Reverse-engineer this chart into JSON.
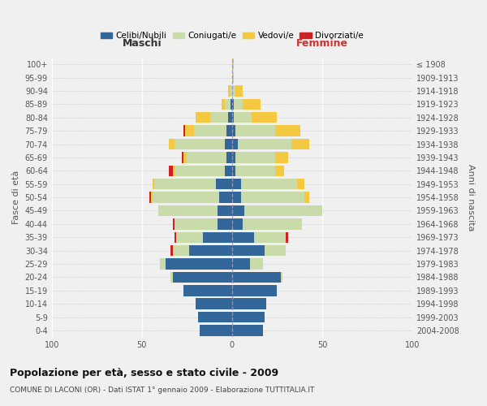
{
  "age_groups": [
    "0-4",
    "5-9",
    "10-14",
    "15-19",
    "20-24",
    "25-29",
    "30-34",
    "35-39",
    "40-44",
    "45-49",
    "50-54",
    "55-59",
    "60-64",
    "65-69",
    "70-74",
    "75-79",
    "80-84",
    "85-89",
    "90-94",
    "95-99",
    "100+"
  ],
  "birth_years": [
    "2004-2008",
    "1999-2003",
    "1994-1998",
    "1989-1993",
    "1984-1988",
    "1979-1983",
    "1974-1978",
    "1969-1973",
    "1964-1968",
    "1959-1963",
    "1954-1958",
    "1949-1953",
    "1944-1948",
    "1939-1943",
    "1934-1938",
    "1929-1933",
    "1924-1928",
    "1919-1923",
    "1914-1918",
    "1909-1913",
    "≤ 1908"
  ],
  "colors": {
    "celibi": "#336699",
    "coniugati": "#c8dba8",
    "vedovi": "#f5c842",
    "divorziati": "#cc2222"
  },
  "maschi": {
    "celibi": [
      18,
      19,
      20,
      27,
      33,
      37,
      24,
      16,
      8,
      8,
      7,
      9,
      4,
      3,
      4,
      3,
      2,
      1,
      0,
      0,
      0
    ],
    "coniugati": [
      0,
      0,
      0,
      0,
      1,
      3,
      9,
      15,
      24,
      33,
      37,
      34,
      28,
      22,
      28,
      18,
      10,
      3,
      1,
      0,
      0
    ],
    "vedovi": [
      0,
      0,
      0,
      0,
      0,
      0,
      0,
      0,
      0,
      0,
      1,
      1,
      1,
      2,
      3,
      5,
      8,
      2,
      1,
      0,
      0
    ],
    "divorziati": [
      0,
      0,
      0,
      0,
      0,
      0,
      1,
      1,
      1,
      0,
      1,
      0,
      2,
      1,
      0,
      1,
      0,
      0,
      0,
      0,
      0
    ]
  },
  "femmine": {
    "celibi": [
      17,
      18,
      19,
      25,
      27,
      10,
      18,
      12,
      6,
      7,
      5,
      5,
      2,
      2,
      3,
      2,
      1,
      1,
      0,
      0,
      0
    ],
    "coniugati": [
      0,
      0,
      0,
      0,
      1,
      7,
      12,
      18,
      33,
      43,
      35,
      31,
      22,
      22,
      30,
      22,
      10,
      5,
      2,
      0,
      0
    ],
    "vedovi": [
      0,
      0,
      0,
      0,
      0,
      0,
      0,
      0,
      0,
      0,
      3,
      4,
      5,
      7,
      10,
      14,
      14,
      10,
      4,
      1,
      1
    ],
    "divorziati": [
      0,
      0,
      0,
      0,
      0,
      0,
      0,
      1,
      0,
      0,
      0,
      0,
      0,
      0,
      0,
      0,
      0,
      0,
      0,
      0,
      0
    ]
  },
  "xlim": 100,
  "title": "Popolazione per età, sesso e stato civile - 2009",
  "subtitle": "COMUNE DI LACONI (OR) - Dati ISTAT 1° gennaio 2009 - Elaborazione TUTTITALIA.IT",
  "ylabel_left": "Fasce di età",
  "ylabel_right": "Anni di nascita",
  "xlabel_left": "Maschi",
  "xlabel_right": "Femmine"
}
